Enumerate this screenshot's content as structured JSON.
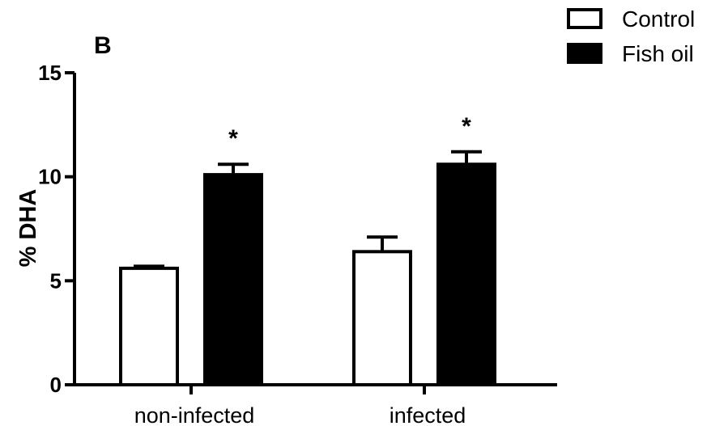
{
  "chart_data": {
    "type": "bar",
    "panel_label": "B",
    "categories": [
      "non-infected",
      "infected"
    ],
    "series": [
      {
        "name": "Control",
        "values": [
          5.6,
          6.4
        ],
        "errors": [
          0.1,
          0.7
        ],
        "fill": "#ffffff",
        "stroke": "#000000"
      },
      {
        "name": "Fish oil",
        "values": [
          10.1,
          10.6
        ],
        "errors": [
          0.5,
          0.6
        ],
        "fill": "#000000",
        "stroke": "#000000"
      }
    ],
    "significance": [
      "*",
      "*"
    ],
    "xlabel": "",
    "ylabel": "% DHA",
    "ylim": [
      0,
      15
    ],
    "yticks": [
      0,
      5,
      10,
      15
    ],
    "grid": false,
    "legend_position": "top-right"
  }
}
